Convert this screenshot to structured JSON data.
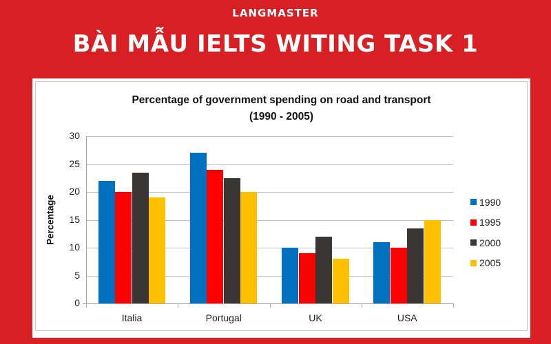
{
  "banner": {
    "brand": "LANGMASTER",
    "headline": "BÀI MẪU IELTS WITING TASK 1",
    "background": "#d71f24"
  },
  "chart_data": {
    "type": "bar",
    "title": "Percentage of government spending on road and transport",
    "subtitle": "(1990 - 2005)",
    "xlabel": "",
    "ylabel": "Percentage",
    "ylim": [
      0,
      30
    ],
    "yticks": [
      "0",
      "5",
      "10",
      "15",
      "20",
      "25",
      "30"
    ],
    "grid": true,
    "legend_position": "right",
    "categories": [
      "Italia",
      "Portugal",
      "UK",
      "USA"
    ],
    "series": [
      {
        "name": "1990",
        "color": "#0070c0",
        "values": [
          22,
          27,
          10,
          11
        ]
      },
      {
        "name": "1995",
        "color": "#ff0000",
        "values": [
          20,
          24,
          9,
          10
        ]
      },
      {
        "name": "2000",
        "color": "#3a3636",
        "values": [
          23.5,
          22.5,
          12,
          13.5
        ]
      },
      {
        "name": "2005",
        "color": "#ffc000",
        "values": [
          19,
          20,
          8,
          15
        ]
      }
    ]
  }
}
